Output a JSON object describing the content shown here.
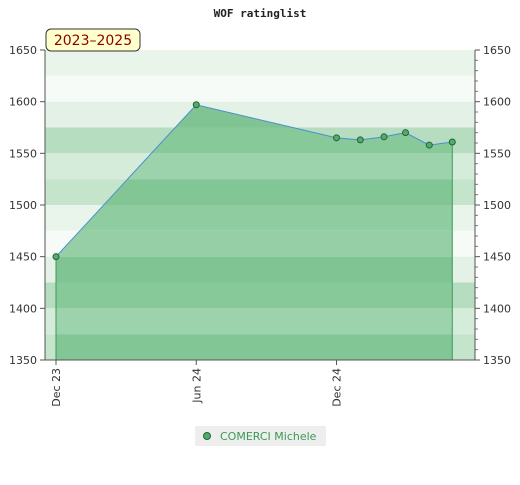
{
  "chart_data": {
    "type": "area",
    "title": "WOF ratinglist",
    "period_badge": "2023–2025",
    "ylim": [
      1350,
      1650
    ],
    "y_ticks": [
      1350,
      1400,
      1450,
      1500,
      1550,
      1600,
      1650
    ],
    "x_range": [
      "2023-12-01",
      "2025-05-15"
    ],
    "x_ticks": [
      {
        "label": "Dec 23",
        "date": "2023-12-01"
      },
      {
        "label": "Jun 24",
        "date": "2024-06-01"
      },
      {
        "label": "Dec 24",
        "date": "2024-12-01"
      }
    ],
    "series": [
      {
        "name": "COMERCI Michele",
        "color": "#4caf6a",
        "points": [
          {
            "date": "2023-12-01",
            "value": 1450
          },
          {
            "date": "2024-06-01",
            "value": 1597
          },
          {
            "date": "2024-12-01",
            "value": 1565
          },
          {
            "date": "2025-01-01",
            "value": 1563
          },
          {
            "date": "2025-02-01",
            "value": 1566
          },
          {
            "date": "2025-03-01",
            "value": 1570
          },
          {
            "date": "2025-04-01",
            "value": 1558
          },
          {
            "date": "2025-05-01",
            "value": 1561
          }
        ]
      }
    ],
    "grid": true,
    "legend_position": "bottom-center"
  }
}
